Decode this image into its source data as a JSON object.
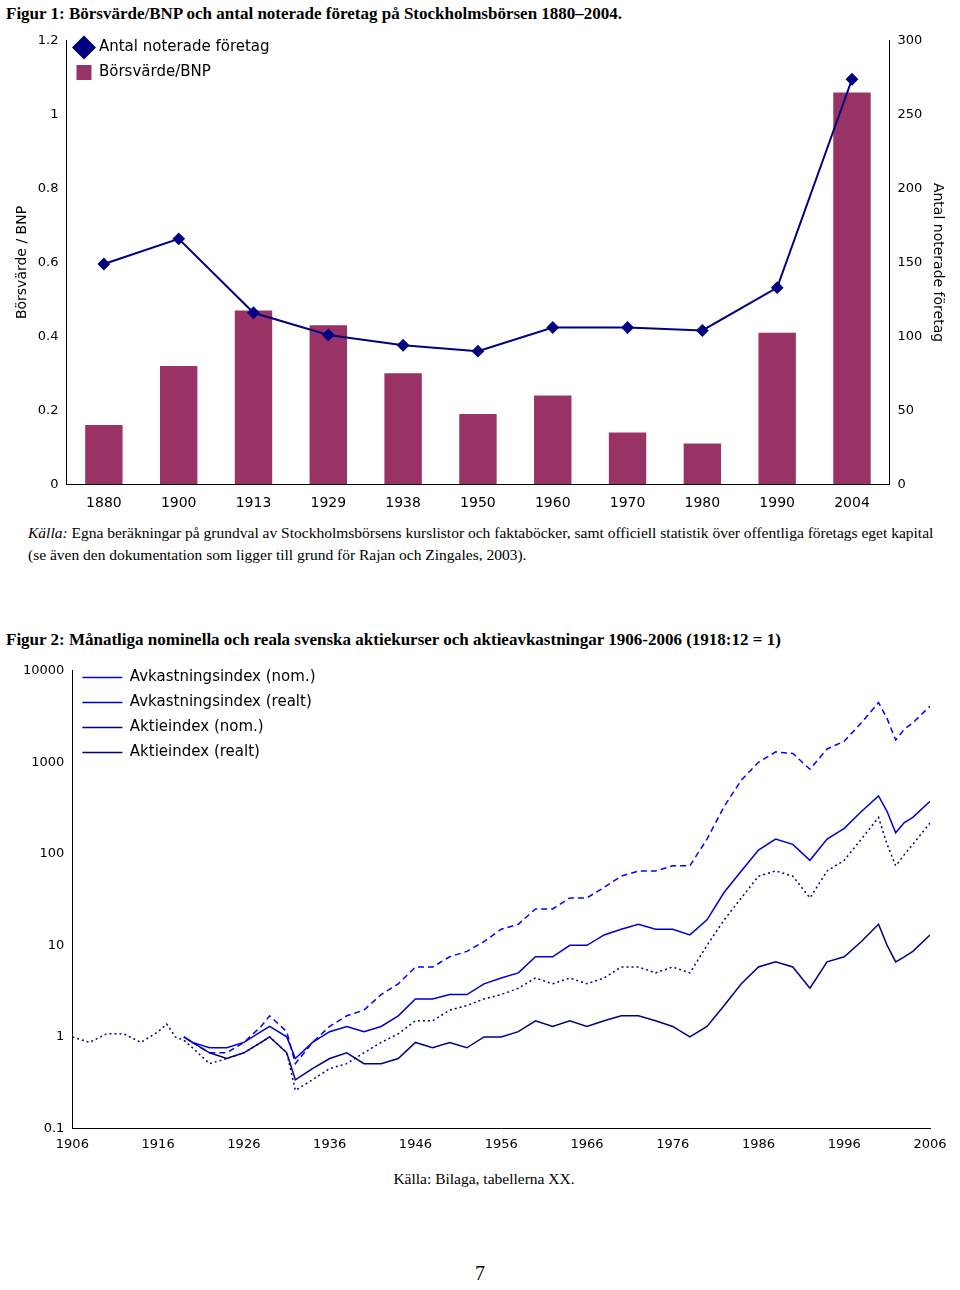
{
  "chart_data": [
    {
      "type": "bar",
      "title": "Figur 1: Börsvärde/BNP och antal noterade företag på Stockholmsbörsen 1880–2004.",
      "annotations": [
        "Källa: Egna beräkningar på grundval av Stockholmsbörsens kurslistor och faktaböcker, samt officiell statistik över offentliga företags eget kapital (se även den dokumentation som ligger till grund för Rajan och Zingales, 2003)."
      ],
      "categories": [
        "1880",
        "1900",
        "1913",
        "1929",
        "1938",
        "1950",
        "1960",
        "1970",
        "1980",
        "1990",
        "2004"
      ],
      "series": [
        {
          "name": "Börsvärde/BNP",
          "type": "bar",
          "color": "#993366",
          "values": [
            0.16,
            0.32,
            0.47,
            0.43,
            0.3,
            0.19,
            0.24,
            0.14,
            0.11,
            0.41,
            1.06
          ]
        },
        {
          "name": "Antal noterade företag",
          "type": "line",
          "color": "#000080",
          "marker": "diamond",
          "axis": "y2",
          "values": [
            149,
            166,
            116,
            101,
            94,
            90,
            106,
            106,
            104,
            133,
            274
          ]
        }
      ],
      "y_label": "Börsvärde / BNP",
      "y2_label": "Antal noterade företag",
      "ylim": [
        0,
        1.2
      ],
      "yticks": [
        0,
        0.2,
        0.4,
        0.6,
        0.8,
        1,
        1.2
      ],
      "y2lim": [
        0,
        300
      ],
      "y2ticks": [
        0,
        50,
        100,
        150,
        200,
        250,
        300
      ],
      "grid": false,
      "legend": "top-left"
    },
    {
      "type": "line",
      "title": "Figur 2: Månatliga nominella och reala svenska aktiekurser och aktieavkastningar 1906-2006 (1918:12 = 1)",
      "annotations": [
        "Källa: Bilaga, tabellerna XX."
      ],
      "x": [
        1906,
        1908,
        1910,
        1912,
        1914,
        1916,
        1917,
        1918,
        1919,
        1920,
        1922,
        1924,
        1926,
        1928,
        1929,
        1931,
        1932,
        1934,
        1936,
        1938,
        1940,
        1942,
        1944,
        1946,
        1948,
        1950,
        1952,
        1954,
        1956,
        1958,
        1960,
        1962,
        1964,
        1966,
        1968,
        1970,
        1972,
        1974,
        1976,
        1978,
        1980,
        1982,
        1984,
        1986,
        1988,
        1990,
        1992,
        1994,
        1996,
        1998,
        2000,
        2001,
        2002,
        2003,
        2004,
        2006
      ],
      "series": [
        {
          "name": "Avkastningsindex (nom.)",
          "color": "#0000ff",
          "line_style": "dashed",
          "values": [
            null,
            null,
            null,
            null,
            null,
            null,
            null,
            null,
            1.0,
            0.87,
            0.67,
            0.67,
            0.87,
            1.3,
            1.7,
            1.14,
            0.51,
            0.87,
            1.3,
            1.7,
            1.96,
            2.9,
            3.8,
            5.8,
            5.8,
            7.5,
            8.6,
            11,
            15,
            17,
            25,
            25,
            33,
            33,
            43,
            57,
            65,
            65,
            74,
            74,
            145,
            330,
            640,
            1000,
            1300,
            1250,
            840,
            1400,
            1700,
            2700,
            4500,
            3000,
            1750,
            2300,
            2700,
            4100
          ]
        },
        {
          "name": "Avkastningsindex (realt)",
          "color": "#0000cc",
          "line_style": "solid",
          "values": [
            null,
            null,
            null,
            null,
            null,
            null,
            null,
            null,
            1.0,
            0.87,
            0.76,
            0.76,
            0.87,
            1.14,
            1.3,
            1.0,
            0.58,
            0.87,
            1.14,
            1.3,
            1.14,
            1.3,
            1.7,
            2.6,
            2.6,
            2.9,
            2.9,
            3.8,
            4.4,
            5.0,
            7.5,
            7.5,
            10,
            10,
            13,
            15,
            17,
            15,
            15,
            13,
            19,
            38,
            65,
            110,
            145,
            127,
            85,
            145,
            190,
            290,
            430,
            290,
            170,
            220,
            250,
            375
          ]
        },
        {
          "name": "Aktieindex (nom.)",
          "color": "#000080",
          "line_style": "dotted",
          "values": [
            1.0,
            0.87,
            1.08,
            1.08,
            0.87,
            1.14,
            1.38,
            1.0,
            0.92,
            0.76,
            0.51,
            0.58,
            0.67,
            0.87,
            1.0,
            0.67,
            0.26,
            0.34,
            0.45,
            0.51,
            0.67,
            0.87,
            1.08,
            1.5,
            1.5,
            1.96,
            2.2,
            2.6,
            2.9,
            3.4,
            4.4,
            3.8,
            4.4,
            3.8,
            4.4,
            5.8,
            5.8,
            5.0,
            5.8,
            5.0,
            10,
            19,
            33,
            57,
            65,
            57,
            33,
            65,
            85,
            145,
            250,
            127,
            74,
            98,
            127,
            218
          ]
        },
        {
          "name": "Aktieindex (realt)",
          "color": "#000080",
          "line_style": "solid",
          "values": [
            null,
            null,
            null,
            null,
            null,
            null,
            null,
            null,
            1.0,
            0.87,
            0.67,
            0.58,
            0.67,
            0.87,
            1.0,
            0.67,
            0.34,
            0.45,
            0.58,
            0.67,
            0.51,
            0.51,
            0.58,
            0.87,
            0.76,
            0.87,
            0.76,
            1.0,
            1.0,
            1.14,
            1.5,
            1.3,
            1.5,
            1.3,
            1.5,
            1.7,
            1.7,
            1.5,
            1.3,
            1.0,
            1.3,
            2.2,
            3.8,
            5.8,
            6.6,
            5.8,
            3.4,
            6.6,
            7.5,
            11,
            17,
            10,
            6.6,
            7.5,
            8.6,
            13
          ]
        }
      ],
      "xlim": [
        1906,
        2006
      ],
      "xticks": [
        1906,
        1916,
        1926,
        1936,
        1946,
        1956,
        1966,
        1976,
        1986,
        1996,
        2006
      ],
      "ylim": [
        0.1,
        10000
      ],
      "yticks": [
        0.1,
        1,
        10,
        100,
        1000,
        10000
      ],
      "log": "y",
      "grid": false,
      "legend": "top-left"
    }
  ],
  "page_number": "7"
}
